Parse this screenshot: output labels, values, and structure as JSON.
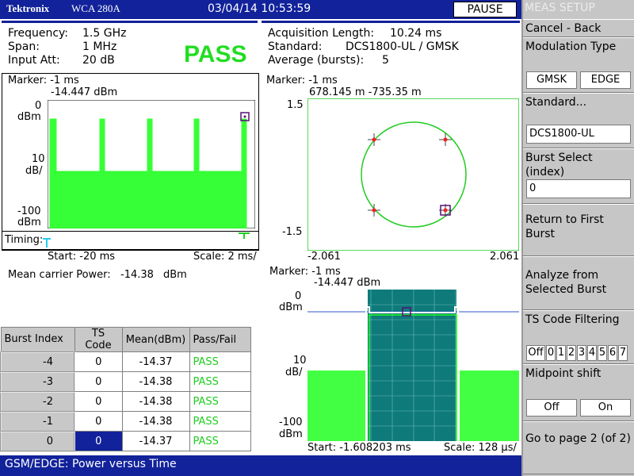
{
  "titlebar": {
    "brand": "Tektronix",
    "model": "WCA 280A",
    "datetime": "03/04/14 10:53:59",
    "pause_label": "PAUSE"
  },
  "info": {
    "frequency_label": "Frequency:",
    "frequency_value": "1.5 GHz",
    "span_label": "Span:",
    "span_value": "1 MHz",
    "input_att_label": "Input Att:",
    "input_att_value": "20 dB",
    "result": "PASS",
    "acq_label": "Acquisition Length:",
    "acq_value": "10.24 ms",
    "standard_label": "Standard:",
    "standard_value": "DCS1800-UL / GMSK",
    "average_label": "Average (bursts):",
    "average_value": "5"
  },
  "pvt_plot": {
    "marker": "Marker: -1 ms",
    "marker_value": "-14.447 dBm",
    "y_top_value": "0",
    "y_top_unit": "dBm",
    "y_div_value": "10",
    "y_div_unit": "dB/",
    "y_bottom_value": "-100",
    "y_bottom_unit": "dBm",
    "timing_label": "Timing:",
    "start": "Start: -20 ms",
    "scale": "Scale: 2 ms/",
    "trace_color": "#22ff22"
  },
  "mean_power": {
    "label": "Mean carrier Power:",
    "value": "-14.38",
    "unit": "dBm"
  },
  "constellation": {
    "marker": "Marker: -1 ms",
    "marker_value": "678.145 m  -735.35 m",
    "y_top": "1.5",
    "y_bottom": "-1.5",
    "x_left": "-2.061",
    "x_right": "2.061"
  },
  "zoom_plot": {
    "marker": "Marker: -1 ms",
    "marker_value": "-14.447 dBm",
    "y_top_value": "0",
    "y_top_unit": "dBm",
    "y_div_value": "10",
    "y_div_unit": "dB/",
    "y_bottom_value": "-100",
    "y_bottom_unit": "dBm",
    "start": "Start: -1.608203 ms",
    "scale": "Scale: 128 µs/",
    "fill_color": "#0e7a7a"
  },
  "table": {
    "headers": [
      "Burst Index",
      "TS Code",
      "Mean(dBm)",
      "Pass/Fail"
    ],
    "rows": [
      [
        "-4",
        "0",
        "-14.37",
        "PASS"
      ],
      [
        "-3",
        "0",
        "-14.38",
        "PASS"
      ],
      [
        "-2",
        "0",
        "-14.38",
        "PASS"
      ],
      [
        "-1",
        "0",
        "-14.38",
        "PASS"
      ],
      [
        "0",
        "0",
        "-14.37",
        "PASS"
      ]
    ]
  },
  "statusbar": {
    "text": "GSM/EDGE: Power versus Time"
  },
  "menu": {
    "title": "MEAS SETUP",
    "cancel_back": "Cancel - Back",
    "modulation_type": "Modulation Type",
    "gmsk": "GMSK",
    "edge": "EDGE",
    "standard": "Standard...",
    "standard_value": "DCS1800-UL",
    "burst_select": "Burst Select (index)",
    "burst_select_value": "0",
    "return_first": "Return to First Burst",
    "analyze_selected": "Analyze from Selected Burst",
    "ts_code_filtering": "TS Code Filtering",
    "ts_options": [
      "Off",
      "0",
      "1",
      "2",
      "3",
      "4",
      "5",
      "6",
      "7"
    ],
    "midpoint_shift": "Midpoint shift",
    "off": "Off",
    "on": "On",
    "go_page": "Go to page 2 (of 2)"
  }
}
